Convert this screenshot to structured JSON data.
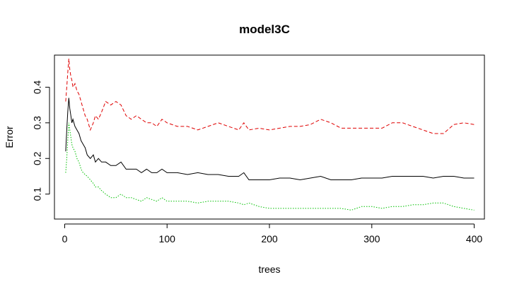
{
  "chart_data": {
    "type": "line",
    "title": "model3C",
    "xlabel": "trees",
    "ylabel": "Error",
    "xlim": [
      -10,
      410
    ],
    "ylim": [
      0.03,
      0.49
    ],
    "xticks": [
      0,
      100,
      200,
      300,
      400
    ],
    "yticks": [
      0.1,
      0.2,
      0.3,
      0.4
    ],
    "grid": false,
    "legend": "none",
    "series": [
      {
        "color": "#000000",
        "dash": "solid",
        "x": [
          1,
          2,
          3,
          4,
          5,
          6,
          7,
          8,
          10,
          12,
          14,
          16,
          18,
          20,
          22,
          25,
          28,
          30,
          33,
          36,
          40,
          45,
          50,
          55,
          60,
          65,
          70,
          75,
          80,
          85,
          90,
          95,
          100,
          110,
          120,
          130,
          140,
          150,
          160,
          170,
          175,
          180,
          190,
          200,
          210,
          220,
          230,
          240,
          250,
          260,
          270,
          280,
          290,
          300,
          310,
          320,
          330,
          340,
          350,
          360,
          370,
          380,
          390,
          400
        ],
        "values": [
          0.22,
          0.28,
          0.33,
          0.37,
          0.34,
          0.32,
          0.3,
          0.31,
          0.29,
          0.28,
          0.27,
          0.25,
          0.24,
          0.23,
          0.21,
          0.2,
          0.21,
          0.19,
          0.2,
          0.19,
          0.19,
          0.18,
          0.18,
          0.19,
          0.17,
          0.17,
          0.17,
          0.16,
          0.17,
          0.16,
          0.16,
          0.17,
          0.16,
          0.16,
          0.155,
          0.16,
          0.155,
          0.155,
          0.15,
          0.15,
          0.16,
          0.14,
          0.14,
          0.14,
          0.145,
          0.145,
          0.14,
          0.145,
          0.15,
          0.14,
          0.14,
          0.14,
          0.145,
          0.145,
          0.145,
          0.15,
          0.15,
          0.15,
          0.15,
          0.145,
          0.15,
          0.15,
          0.145,
          0.145
        ]
      },
      {
        "color": "#df0000",
        "dash": "dashed",
        "x": [
          1,
          2,
          3,
          4,
          5,
          6,
          7,
          8,
          10,
          12,
          14,
          16,
          18,
          20,
          22,
          25,
          28,
          30,
          33,
          36,
          40,
          45,
          50,
          55,
          60,
          65,
          70,
          75,
          80,
          85,
          90,
          95,
          100,
          110,
          120,
          130,
          140,
          150,
          160,
          170,
          175,
          180,
          190,
          200,
          210,
          220,
          230,
          240,
          250,
          260,
          270,
          280,
          290,
          300,
          310,
          320,
          330,
          340,
          350,
          360,
          370,
          380,
          390,
          400
        ],
        "values": [
          0.36,
          0.4,
          0.44,
          0.48,
          0.45,
          0.43,
          0.42,
          0.4,
          0.41,
          0.39,
          0.38,
          0.36,
          0.34,
          0.32,
          0.31,
          0.28,
          0.3,
          0.32,
          0.31,
          0.33,
          0.36,
          0.35,
          0.36,
          0.35,
          0.32,
          0.31,
          0.32,
          0.31,
          0.3,
          0.3,
          0.29,
          0.31,
          0.3,
          0.29,
          0.29,
          0.28,
          0.29,
          0.3,
          0.29,
          0.28,
          0.3,
          0.28,
          0.285,
          0.28,
          0.285,
          0.29,
          0.29,
          0.295,
          0.31,
          0.3,
          0.285,
          0.285,
          0.285,
          0.285,
          0.285,
          0.3,
          0.3,
          0.29,
          0.28,
          0.27,
          0.27,
          0.295,
          0.3,
          0.295
        ]
      },
      {
        "color": "#00c000",
        "dash": "dotted",
        "x": [
          1,
          2,
          3,
          4,
          5,
          6,
          7,
          8,
          10,
          12,
          14,
          16,
          18,
          20,
          22,
          25,
          28,
          30,
          33,
          36,
          40,
          45,
          50,
          55,
          60,
          65,
          70,
          75,
          80,
          85,
          90,
          95,
          100,
          110,
          120,
          130,
          140,
          150,
          160,
          170,
          175,
          180,
          190,
          200,
          210,
          220,
          230,
          240,
          250,
          260,
          270,
          280,
          290,
          300,
          310,
          320,
          330,
          340,
          350,
          360,
          370,
          380,
          390,
          400
        ],
        "values": [
          0.16,
          0.2,
          0.25,
          0.3,
          0.28,
          0.26,
          0.24,
          0.23,
          0.22,
          0.2,
          0.19,
          0.17,
          0.16,
          0.155,
          0.15,
          0.14,
          0.13,
          0.12,
          0.12,
          0.11,
          0.1,
          0.09,
          0.09,
          0.1,
          0.09,
          0.09,
          0.085,
          0.08,
          0.09,
          0.085,
          0.08,
          0.09,
          0.08,
          0.08,
          0.08,
          0.075,
          0.08,
          0.08,
          0.08,
          0.075,
          0.07,
          0.075,
          0.065,
          0.06,
          0.06,
          0.06,
          0.06,
          0.06,
          0.06,
          0.06,
          0.06,
          0.055,
          0.065,
          0.065,
          0.06,
          0.065,
          0.065,
          0.07,
          0.07,
          0.075,
          0.075,
          0.065,
          0.06,
          0.055
        ]
      }
    ]
  }
}
